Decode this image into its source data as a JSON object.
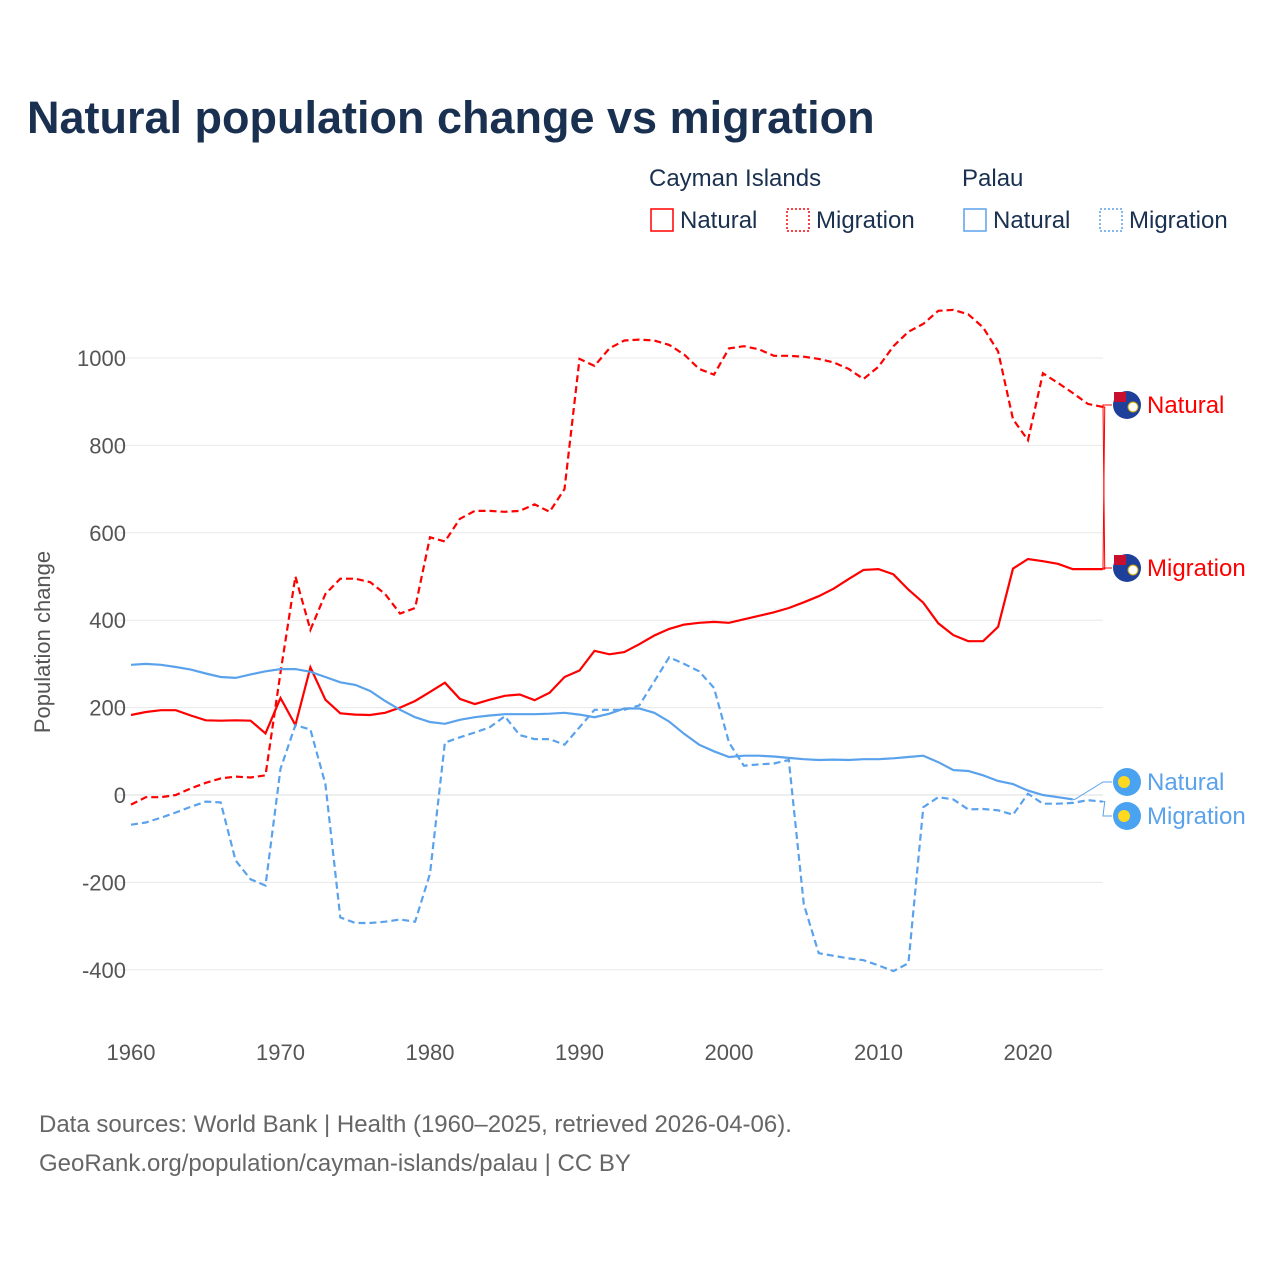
{
  "chart_data": {
    "type": "line",
    "title": "Natural population change vs migration",
    "ylabel": "Population change",
    "xlabel": "",
    "ylim": [
      -500,
      1150
    ],
    "xlim": [
      1960,
      2025
    ],
    "grid": true,
    "y_ticks": [
      -400,
      -200,
      0,
      200,
      400,
      600,
      800,
      1000
    ],
    "x_ticks": [
      1960,
      1970,
      1980,
      1990,
      2000,
      2010,
      2020
    ],
    "legend": {
      "placement": "top-right",
      "groups": [
        {
          "title": "Cayman Islands",
          "items": [
            "Natural",
            "Migration"
          ]
        },
        {
          "title": "Palau",
          "items": [
            "Natural",
            "Migration"
          ]
        }
      ]
    },
    "x": [
      1960,
      1961,
      1962,
      1963,
      1964,
      1965,
      1966,
      1967,
      1968,
      1969,
      1970,
      1971,
      1972,
      1973,
      1974,
      1975,
      1976,
      1977,
      1978,
      1979,
      1980,
      1981,
      1982,
      1983,
      1984,
      1985,
      1986,
      1987,
      1988,
      1989,
      1990,
      1991,
      1992,
      1993,
      1994,
      1995,
      1996,
      1997,
      1998,
      1999,
      2000,
      2001,
      2002,
      2003,
      2004,
      2005,
      2006,
      2007,
      2008,
      2009,
      2010,
      2011,
      2012,
      2013,
      2014,
      2015,
      2016,
      2017,
      2018,
      2019,
      2020,
      2021,
      2022,
      2023,
      2024,
      2025
    ],
    "series": [
      {
        "name": "Natural",
        "country": "Cayman Islands",
        "color": "#ff0000",
        "dash": false,
        "end_label": "Natural",
        "values": [
          183,
          190,
          194,
          194,
          182,
          171,
          170,
          171,
          170,
          141,
          222,
          160,
          292,
          218,
          187,
          184,
          183,
          188,
          200,
          215,
          236,
          257,
          220,
          208,
          218,
          227,
          230,
          217,
          234,
          270,
          285,
          330,
          322,
          327,
          345,
          365,
          380,
          390,
          394,
          396,
          394,
          402,
          410,
          418,
          428,
          441,
          455,
          472,
          494,
          515,
          517,
          505,
          470,
          440,
          393,
          366,
          352,
          352,
          385,
          518,
          540,
          535,
          529,
          517,
          517,
          517
        ]
      },
      {
        "name": "Migration",
        "country": "Cayman Islands",
        "color": "#ff0000",
        "dash": true,
        "end_label": "Migration",
        "values": [
          -22,
          -5,
          -5,
          0,
          15,
          28,
          38,
          42,
          40,
          45,
          280,
          500,
          378,
          460,
          495,
          495,
          487,
          460,
          415,
          428,
          590,
          580,
          632,
          650,
          650,
          648,
          650,
          665,
          648,
          700,
          998,
          982,
          1022,
          1040,
          1042,
          1040,
          1030,
          1008,
          975,
          962,
          1022,
          1027,
          1020,
          1005,
          1005,
          1003,
          998,
          990,
          975,
          952,
          980,
          1027,
          1060,
          1078,
          1108,
          1110,
          1100,
          1070,
          1015,
          860,
          812,
          965,
          943,
          920,
          895,
          888
        ]
      },
      {
        "name": "Natural",
        "country": "Palau",
        "color": "#5aa2ec",
        "dash": false,
        "end_label": "Natural",
        "values": [
          298,
          300,
          298,
          293,
          287,
          278,
          270,
          268,
          276,
          283,
          288,
          288,
          282,
          270,
          258,
          252,
          238,
          215,
          195,
          178,
          167,
          163,
          172,
          178,
          182,
          185,
          185,
          185,
          186,
          188,
          184,
          178,
          186,
          198,
          198,
          188,
          168,
          140,
          115,
          100,
          87,
          90,
          90,
          88,
          85,
          82,
          80,
          81,
          80,
          82,
          82,
          84,
          87,
          90,
          75,
          57,
          55,
          45,
          32,
          25,
          10,
          0,
          -5,
          -10,
          null,
          null
        ]
      },
      {
        "name": "Migration",
        "country": "Palau",
        "color": "#5aa2ec",
        "dash": true,
        "end_label": "Migration",
        "values": [
          -68,
          -63,
          -52,
          -40,
          -27,
          -15,
          -17,
          -150,
          -193,
          -207,
          60,
          160,
          150,
          25,
          -280,
          -293,
          -293,
          -290,
          -285,
          -290,
          -180,
          120,
          132,
          143,
          155,
          180,
          137,
          128,
          128,
          115,
          155,
          195,
          195,
          195,
          205,
          260,
          315,
          300,
          283,
          245,
          120,
          67,
          70,
          72,
          80,
          -250,
          -362,
          -368,
          -374,
          -378,
          -390,
          -403,
          -385,
          -28,
          -5,
          -10,
          -33,
          -32,
          -35,
          -45,
          3,
          -20,
          -20,
          -18,
          -12,
          -15
        ]
      }
    ]
  },
  "footer": {
    "line1": "Data sources: World Bank | Health (1960–2025, retrieved 2026-04-06).",
    "line2": "GeoRank.org/population/cayman-islands/palau | CC BY"
  }
}
